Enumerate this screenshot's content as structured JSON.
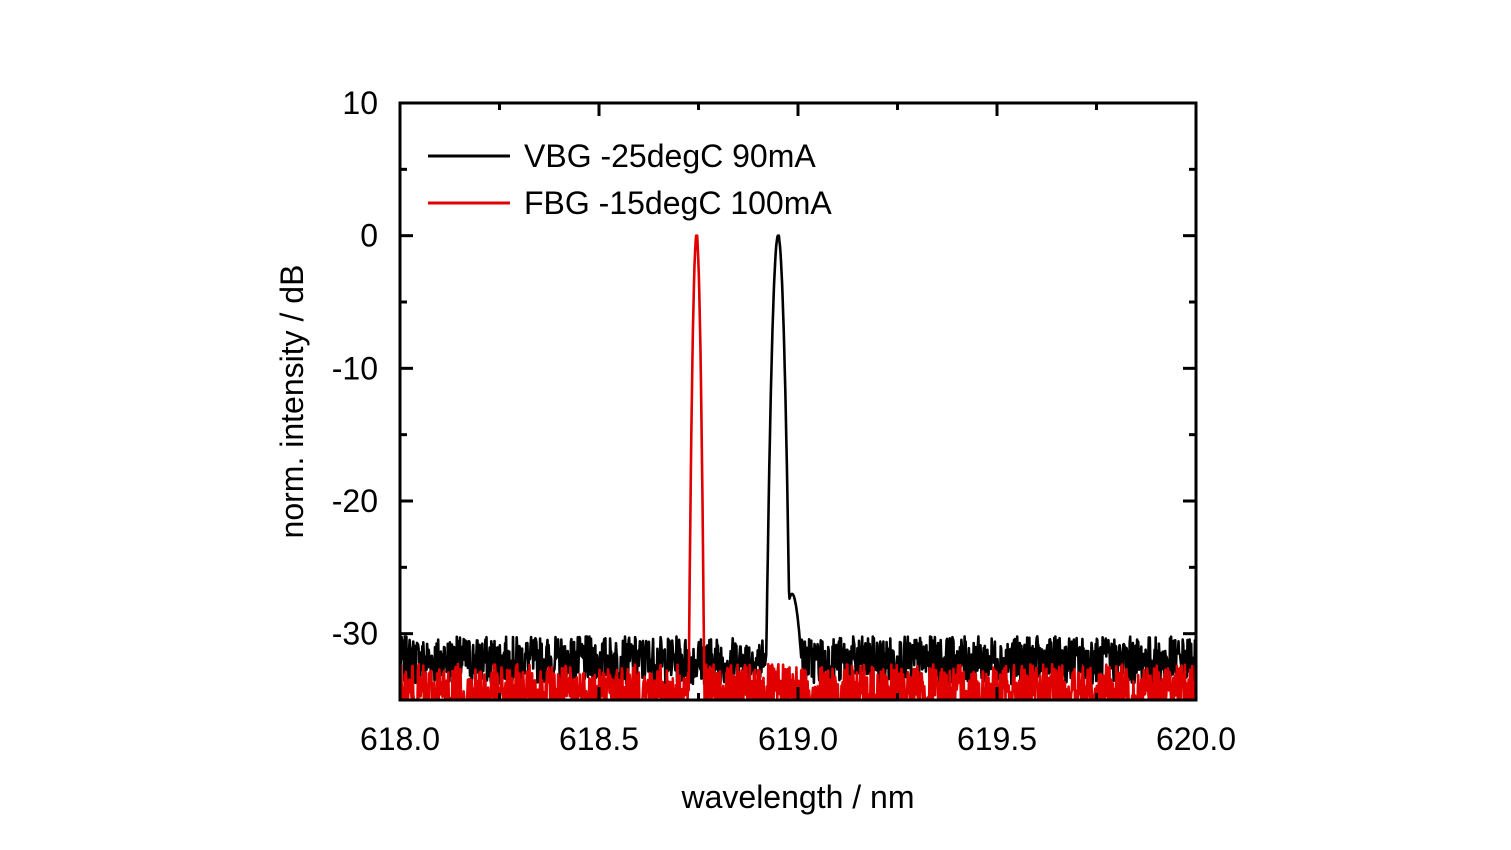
{
  "chart_data": {
    "type": "line",
    "xlabel": "wavelength / nm",
    "ylabel": "norm. intensity / dB",
    "xlim": [
      618.0,
      620.0
    ],
    "ylim": [
      -35,
      10
    ],
    "x_ticks": [
      618.0,
      618.5,
      619.0,
      619.5,
      620.0
    ],
    "x_tick_labels": [
      "618.0",
      "618.5",
      "619.0",
      "619.5",
      "620.0"
    ],
    "y_ticks": [
      10,
      0,
      -10,
      -20,
      -30
    ],
    "y_tick_labels": [
      "10",
      "0",
      "-10",
      "-20",
      "-30"
    ],
    "grid": false,
    "legend_position": "top-left",
    "series": [
      {
        "name": "VBG -25degC 90mA",
        "color": "#000000",
        "peak_x": 618.95,
        "peak_y": 0,
        "noise_floor": -32,
        "x": [
          618.0,
          618.5,
          618.85,
          618.9,
          618.93,
          618.95,
          618.97,
          618.99,
          619.05,
          619.5,
          620.0
        ],
        "y": [
          -32,
          -32,
          -31,
          -29,
          -20,
          0,
          -25,
          -27,
          -32,
          -32,
          -31
        ]
      },
      {
        "name": "FBG -15degC 100mA",
        "color": "#e00000",
        "peak_x": 618.745,
        "peak_y": 0,
        "noise_floor": -34.5,
        "x": [
          618.0,
          618.5,
          618.7,
          618.73,
          618.745,
          618.76,
          618.79,
          619.0,
          619.5,
          620.0
        ],
        "y": [
          -34,
          -34,
          -33,
          -25,
          0,
          -25,
          -33,
          -34,
          -34,
          -33
        ]
      }
    ]
  }
}
